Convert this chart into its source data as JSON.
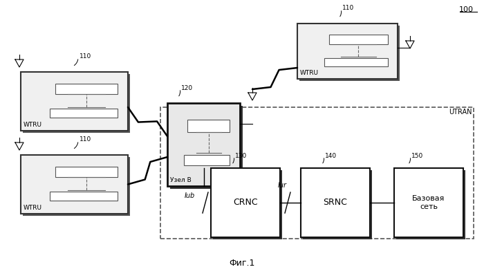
{
  "title": "Фиг.1",
  "label_100": "100",
  "label_utran": "UTRAN",
  "bg_color": "#ffffff"
}
